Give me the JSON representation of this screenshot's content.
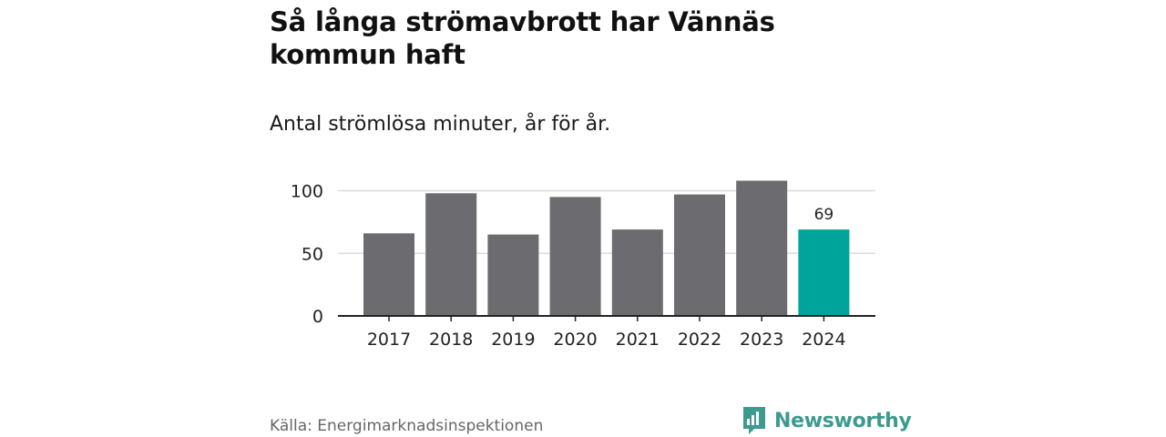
{
  "title": "Så långa strömavbrott har Vännäs kommun haft",
  "subtitle": "Antal strömlösa minuter, år för år.",
  "source": "Källa: Energimarknadsinspektionen",
  "brand": {
    "name": "Newsworthy",
    "color": "#3d9a8e"
  },
  "colors": {
    "bar": "#6b6b70",
    "highlight": "#00a49a",
    "grid": "#dcdcdc",
    "axis": "#222222"
  },
  "chart_data": {
    "type": "bar",
    "categories": [
      "2017",
      "2018",
      "2019",
      "2020",
      "2021",
      "2022",
      "2023",
      "2024"
    ],
    "values": [
      66,
      98,
      65,
      95,
      69,
      97,
      108,
      69
    ],
    "highlight_category": "2024",
    "data_labels": [
      {
        "category": "2024",
        "text": "69"
      }
    ],
    "title": "Så långa strömavbrott har Vännäs kommun haft",
    "subtitle": "Antal strömlösa minuter, år för år.",
    "xlabel": "",
    "ylabel": "",
    "yticks": [
      0,
      50,
      100
    ],
    "ylim": [
      0,
      110
    ],
    "grid": true,
    "legend": false
  }
}
